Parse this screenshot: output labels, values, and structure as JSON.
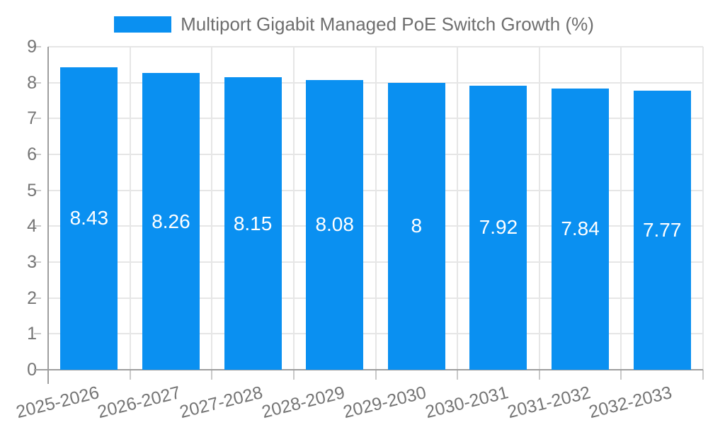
{
  "chart_data": {
    "type": "bar",
    "title": "Multiport Gigabit Managed PoE Switch Growth (%)",
    "legend": {
      "position": "top",
      "label": "Multiport Gigabit Managed PoE Switch Growth (%)"
    },
    "categories": [
      "2025-2026",
      "2026-2027",
      "2027-2028",
      "2028-2029",
      "2029-2030",
      "2030-2031",
      "2031-2032",
      "2032-2033"
    ],
    "values": [
      8.43,
      8.26,
      8.15,
      8.08,
      8,
      7.92,
      7.84,
      7.77
    ],
    "bar_value_labels": [
      "8.43",
      "8.26",
      "8.15",
      "8.08",
      "8",
      "7.92",
      "7.84",
      "7.77"
    ],
    "xlabel": "",
    "ylabel": "",
    "ylim": [
      0,
      9
    ],
    "yticks": [
      0,
      1,
      2,
      3,
      4,
      5,
      6,
      7,
      8,
      9
    ],
    "grid": true,
    "colors": {
      "bar": "#0a90f1",
      "value_label": "#ffffff",
      "axis_text": "#757575",
      "legend_text": "#6e6e6e",
      "grid": "#e6e6e6",
      "tick": "#c9c9c9",
      "axis_line": "#9e9e9e",
      "background": "#ffffff"
    }
  }
}
